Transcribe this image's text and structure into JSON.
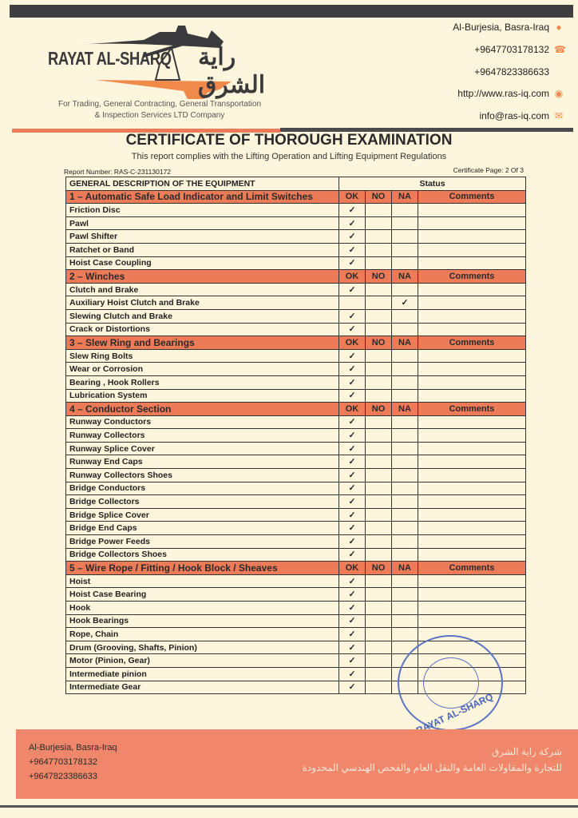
{
  "company": {
    "name_en": "RAYAT AL-SHARQ",
    "name_ar": "راية الشرق",
    "tagline_1": "For Trading, General Contracting, General Transportation",
    "tagline_2": "& Inspection Services LTD Company"
  },
  "contact": {
    "address": "Al-Burjesia, Basra-Iraq",
    "phone_1": "+9647703178132",
    "phone_2": "+9647823386633",
    "website": "http://www.ras-iq.com",
    "email": "info@ras-iq.com"
  },
  "document": {
    "title": "CERTIFICATE OF THOROUGH EXAMINATION",
    "subtitle": "This report complies with the Lifting Operation and Lifting Equipment Regulations",
    "report_number": "Report Number: RAS-C-231130172",
    "certificate_page": "Certificate Page: 2 Of 3"
  },
  "table": {
    "header_desc": "GENERAL DESCRIPTION OF THE EQUIPMENT",
    "header_status": "Status",
    "col_ok": "OK",
    "col_no": "NO",
    "col_na": "NA",
    "col_comments": "Comments",
    "check": "✓",
    "sections": [
      {
        "title": "1 – Automatic Safe Load Indicator and Limit Switches",
        "items": [
          {
            "name": "Friction Disc",
            "status": "OK"
          },
          {
            "name": "Pawl",
            "status": "OK"
          },
          {
            "name": "Pawl Shifter",
            "status": "OK"
          },
          {
            "name": "Ratchet or Band",
            "status": "OK"
          },
          {
            "name": "Hoist Case Coupling",
            "status": "OK"
          }
        ]
      },
      {
        "title": "2 – Winches",
        "items": [
          {
            "name": "Clutch and Brake",
            "status": "OK"
          },
          {
            "name": "Auxiliary Hoist Clutch and Brake",
            "status": "NA"
          },
          {
            "name": "Slewing Clutch and Brake",
            "status": "OK"
          },
          {
            "name": "Crack or Distortions",
            "status": "OK"
          }
        ]
      },
      {
        "title": "3 – Slew Ring and Bearings",
        "items": [
          {
            "name": "Slew Ring Bolts",
            "status": "OK"
          },
          {
            "name": "Wear or Corrosion",
            "status": "OK"
          },
          {
            "name": "Bearing , Hook Rollers",
            "status": "OK"
          },
          {
            "name": "Lubrication System",
            "status": "OK"
          }
        ]
      },
      {
        "title": "4 – Conductor Section",
        "items": [
          {
            "name": "Runway Conductors",
            "status": "OK"
          },
          {
            "name": "Runway Collectors",
            "status": "OK"
          },
          {
            "name": "Runway Splice Cover",
            "status": "OK"
          },
          {
            "name": "Runway End Caps",
            "status": "OK"
          },
          {
            "name": "Runway Collectors Shoes",
            "status": "OK"
          },
          {
            "name": "Bridge Conductors",
            "status": "OK"
          },
          {
            "name": "Bridge Collectors",
            "status": "OK"
          },
          {
            "name": "Bridge Splice Cover",
            "status": "OK"
          },
          {
            "name": "Bridge End Caps",
            "status": "OK"
          },
          {
            "name": "Bridge Power Feeds",
            "status": "OK"
          },
          {
            "name": "Bridge Collectors Shoes",
            "status": "OK"
          }
        ]
      },
      {
        "title": "5 – Wire Rope / Fitting / Hook Block / Sheaves",
        "items": [
          {
            "name": "Hoist",
            "status": "OK"
          },
          {
            "name": "Hoist Case Bearing",
            "status": "OK"
          },
          {
            "name": "Hook",
            "status": "OK"
          },
          {
            "name": "Hook Bearings",
            "status": "OK"
          },
          {
            "name": "Rope, Chain",
            "status": "OK"
          },
          {
            "name": "Drum (Grooving, Shafts, Pinion)",
            "status": "OK"
          },
          {
            "name": "Motor (Pinion, Gear)",
            "status": "OK"
          },
          {
            "name": "Intermediate pinion",
            "status": "OK"
          },
          {
            "name": "Intermediate Gear",
            "status": "OK"
          }
        ]
      }
    ]
  },
  "stamp": {
    "text": "RAYAT AL-SHARQ Co."
  },
  "footer": {
    "address": "Al-Burjesia, Basra-Iraq",
    "phone_1": "+9647703178132",
    "phone_2": "+9647823386633",
    "ar_line_1": "شركة راية الشرق",
    "ar_line_2": "للتجارة والمقاولات العامة والنقل العام والفحص الهندسي المحدودة"
  },
  "colors": {
    "accent": "#ee7b58",
    "dark": "#3f3f42",
    "paper": "#fdf5dc",
    "stamp": "#5a73c4"
  }
}
